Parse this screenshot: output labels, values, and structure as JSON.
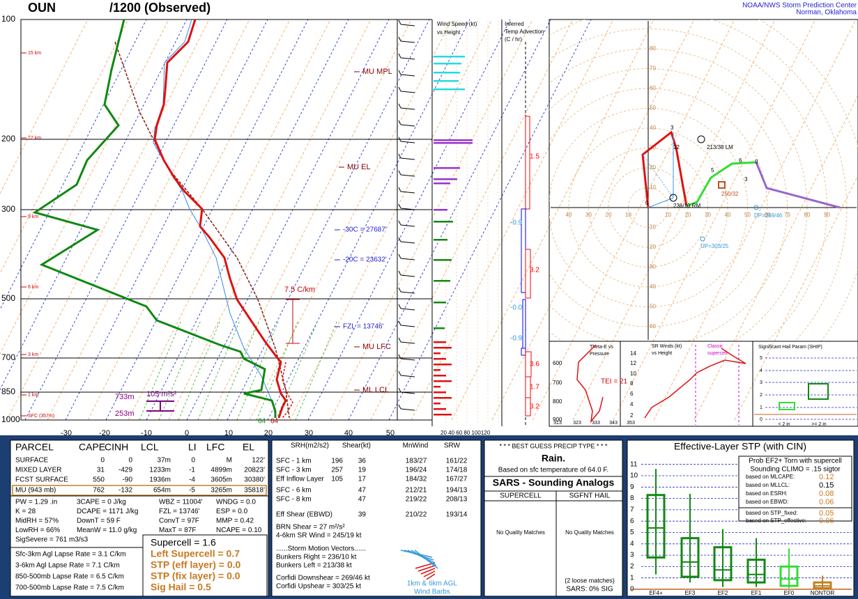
{
  "header": {
    "station": "OUN",
    "time": "/1200  (Observed)",
    "source": "NOAA/NWS Storm Prediction Center",
    "location": "Norman, Oklahoma"
  },
  "skewt": {
    "pressure_labels": [
      "100",
      "200",
      "300",
      "500",
      "700",
      "850",
      "1000"
    ],
    "temp_labels": [
      "-30",
      "-20",
      "-10",
      "0",
      "10",
      "20",
      "30",
      "40",
      "50"
    ],
    "height_labels": [
      "15 km",
      "12 km",
      "9 km",
      "6 km",
      "3 km",
      "1 km",
      "SFC (357m)"
    ],
    "levels": [
      "MU MPL",
      "MU EL",
      "-30C = 27687'",
      "-20C = 23632'",
      "FZL = 13746'",
      "MU LFC",
      "ML LCL"
    ],
    "lapse_label": "7.5 C/km",
    "srh_label": "105 m²s²",
    "srh_top": "733m",
    "srh_bottom": "253m",
    "sfc_temp": "64",
    "sfc_dew": "64"
  },
  "wind_panel": {
    "title": "Wind Speed (kt)",
    "subtitle": "vs Height",
    "axis": "20 40 60 80 100120"
  },
  "advection": {
    "title": [
      "Inferred",
      "Temp Advection",
      "(C / hr)"
    ],
    "values": [
      "1.5",
      "-0.9",
      "3.2",
      "-0.0",
      "-0.9",
      "3.6",
      "1.7",
      "3.2"
    ]
  },
  "hodograph": {
    "ring_labels": [
      "10",
      "20",
      "30",
      "40",
      "50",
      "60",
      "70",
      "80",
      "90"
    ],
    "annotations": [
      "213/38 LM",
      "236/10 RM",
      "250/32",
      "DP=269/46",
      "UP=303/25"
    ],
    "point_labels": [
      "0",
      "3",
      "12",
      "5",
      "6",
      "9",
      "3"
    ]
  },
  "thetae": {
    "title": [
      "Theta-E vs",
      "Pressure"
    ],
    "yticks": [
      "600",
      "700",
      "800",
      "900"
    ],
    "xticks": [
      "313",
      "323",
      "333",
      "343",
      "353"
    ],
    "tei": "TEI = 21"
  },
  "srwinds": {
    "title": [
      "SR Winds (kt)",
      "vs Height"
    ],
    "classic": [
      "Classic",
      "supercell"
    ],
    "yticks": [
      "14",
      "12",
      "10",
      "8",
      "6",
      "4",
      "2"
    ]
  },
  "ship": {
    "title": "Significant Hail Param (SHIP)",
    "yticks": [
      "5",
      "4",
      "3",
      "2",
      "1",
      "0"
    ],
    "categories": [
      "< 2 in",
      ">= 2 in"
    ]
  },
  "parcel": {
    "header": [
      "PARCEL",
      "CAPE",
      "CINH",
      "LCL",
      "LI",
      "LFC",
      "EL"
    ],
    "rows": [
      [
        "SURFACE",
        "0",
        "0",
        "37m",
        "0",
        "M",
        "122'"
      ],
      [
        "MIXED LAYER",
        "31",
        "-429",
        "1233m",
        "-1",
        "4899m",
        "20823'"
      ],
      [
        "FCST SURFACE",
        "550",
        "-90",
        "1936m",
        "-4",
        "3605m",
        "30380'"
      ],
      [
        "MU   (943 mb)",
        "762",
        "-132",
        "654m",
        "-5",
        "3265m",
        "35818'"
      ]
    ]
  },
  "indices": [
    [
      "PW = 1.29 .in",
      "K = 28",
      "MidRH = 57%",
      "LowRH = 66%",
      "SigSevere = 761 m3/s3"
    ],
    [
      "3CAPE = 0 J/kg",
      "DCAPE = 1171 J/kg",
      "DownT = 59 F",
      "MeanW = 11.0 g/kg"
    ],
    [
      "WBZ = 11004'",
      "FZL = 13746'",
      "ConvT = 97F",
      "MaxT = 87F"
    ],
    [
      "WNDG = 0.0",
      "ESP = 0.0",
      "MMP = 0.42",
      "NCAPE = 0.10"
    ]
  ],
  "lapse_rates": [
    "Sfc-3km Agl Lapse Rate =  3.1 C/km",
    "3-6km Agl Lapse Rate =  7.1 C/km",
    "850-500mb Lapse Rate =  6.5 C/km",
    "700-500mb Lapse Rate =  7.5 C/km"
  ],
  "composites": [
    "Supercell = 1.6",
    "Left Supercell = 0.7",
    "STP (eff layer) = 0.0",
    "STP (fix layer) = 0.0",
    "Sig Hail = 0.5"
  ],
  "kinematics": {
    "header": [
      "SRH(m2/s2)",
      "Shear(kt)",
      "MnWind",
      "SRW"
    ],
    "rows": [
      [
        "SFC - 1 km",
        "196",
        "36",
        "183/27",
        "161/22"
      ],
      [
        "SFC - 3 km",
        "257",
        "19",
        "196/24",
        "174/18"
      ],
      [
        "Eff Inflow Layer",
        "105",
        "17",
        "184/32",
        "167/27"
      ],
      [
        "SFC - 6 km",
        null,
        "47",
        "212/21",
        "194/13"
      ],
      [
        "SFC - 8 km",
        null,
        "47",
        "219/22",
        "208/13"
      ],
      [
        "Eff Shear (EBWD)",
        null,
        "39",
        "210/22",
        "193/14"
      ]
    ],
    "notes": [
      "BRN Shear =  27 m²/s²",
      "4-6km SR Wind =       245/19 kt",
      "......Storm Motion Vectors......",
      "Bunkers Right =         236/10 kt",
      "Bunkers Left =          213/38 kt",
      "Corfidi Downshear =   269/46 kt",
      "Corfidi Upshear =      303/25 kt"
    ],
    "barb_caption": [
      "1km & 6km AGL",
      "Wind Barbs"
    ]
  },
  "precip": {
    "title": "* * * BEST GUESS PRECIP TYPE * * *",
    "type": "Rain.",
    "basis": "Based on sfc temperature of 64.0 F."
  },
  "sars": {
    "title": "SARS - Sounding Analogs",
    "columns": [
      "SUPERCELL",
      "SGFNT HAIL"
    ],
    "matches": [
      "No Quality Matches",
      "No Quality Matches"
    ],
    "loose": "(2 loose matches)",
    "sig": "SARS:  0% SIG"
  },
  "stp": {
    "title": "Effective-Layer STP (with CIN)",
    "yticks": [
      "0",
      "1",
      "2",
      "3",
      "4",
      "5",
      "6",
      "7",
      "8",
      "9",
      "10",
      "11"
    ],
    "categories": [
      "EF4+",
      "EF3",
      "EF2",
      "EF1",
      "EF0",
      "NONTOR"
    ],
    "prob_title": [
      "Prob EF2+ Torn with supercell",
      "Sounding CLIMO = .15 sigtor"
    ],
    "prob_rows": [
      [
        "based on MLCAPE:",
        "0.12"
      ],
      [
        "based on MLLCL:",
        "0.15"
      ],
      [
        "based on ESRH:",
        "0.08"
      ],
      [
        "based on EBWD:",
        "0.06"
      ],
      [
        "based on STP_fixed:",
        "0.05"
      ],
      [
        "based on STP_effective:",
        "0.06"
      ]
    ]
  }
}
